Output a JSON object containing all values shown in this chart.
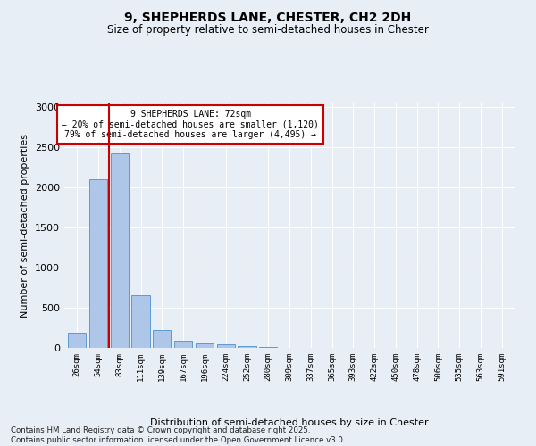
{
  "title1": "9, SHEPHERDS LANE, CHESTER, CH2 2DH",
  "title2": "Size of property relative to semi-detached houses in Chester",
  "xlabel": "Distribution of semi-detached houses by size in Chester",
  "ylabel": "Number of semi-detached properties",
  "bar_labels": [
    "26sqm",
    "54sqm",
    "83sqm",
    "111sqm",
    "139sqm",
    "167sqm",
    "196sqm",
    "224sqm",
    "252sqm",
    "280sqm",
    "309sqm",
    "337sqm",
    "365sqm",
    "393sqm",
    "422sqm",
    "450sqm",
    "478sqm",
    "506sqm",
    "535sqm",
    "563sqm",
    "591sqm"
  ],
  "bar_values": [
    185,
    2100,
    2420,
    650,
    220,
    90,
    50,
    40,
    25,
    15,
    5,
    2,
    1,
    1,
    0,
    0,
    0,
    0,
    0,
    0,
    0
  ],
  "bar_color": "#aec6e8",
  "bar_edgecolor": "#5b9bd5",
  "vline_color": "#cc0000",
  "vline_pos": 1.5,
  "annotation_title": "9 SHEPHERDS LANE: 72sqm",
  "annotation_line1": "← 20% of semi-detached houses are smaller (1,120)",
  "annotation_line2": "79% of semi-detached houses are larger (4,495) →",
  "ylim": [
    0,
    3050
  ],
  "yticks": [
    0,
    500,
    1000,
    1500,
    2000,
    2500,
    3000
  ],
  "footer1": "Contains HM Land Registry data © Crown copyright and database right 2025.",
  "footer2": "Contains public sector information licensed under the Open Government Licence v3.0.",
  "bg_color": "#e8eef5",
  "grid_color": "#ffffff"
}
